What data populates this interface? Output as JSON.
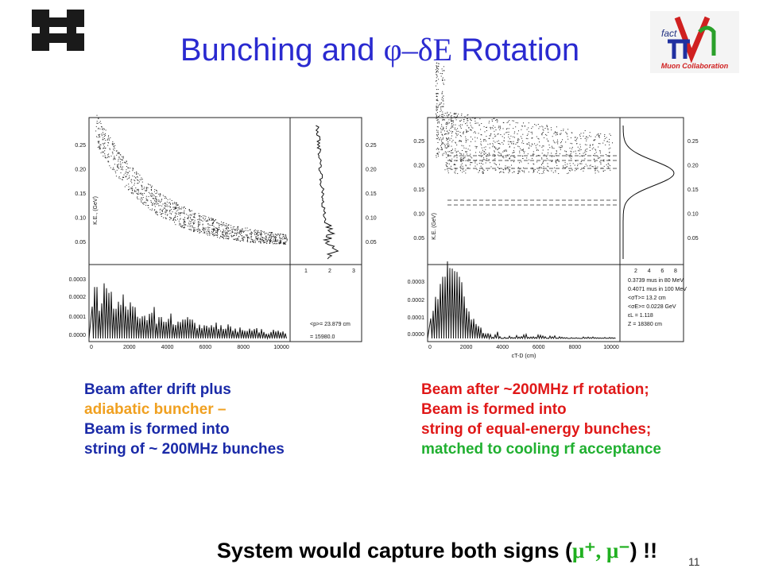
{
  "header": {
    "title": [
      "Bunching and ",
      "φ–δE",
      " Rotation"
    ],
    "logo": [
      "fact",
      "Muon Collaboration"
    ]
  },
  "figures": [
    {
      "ylabel": "K.E., (GeV)",
      "yticks": [
        "0.25",
        "0.20",
        "0.15",
        "0.10",
        "0.05"
      ],
      "hist_yticks": [
        "0.0003",
        "0.0002",
        "0.0001",
        "0.0000"
      ],
      "xticks": [
        "0",
        "2000",
        "4000",
        "6000",
        "8000",
        "10000"
      ],
      "side_xticks": [
        "1",
        "2",
        "3"
      ],
      "side_yticks": [
        "0.25",
        "0.20",
        "0.15",
        "0.10",
        "0.05"
      ],
      "notes": [
        "<p>= 23.879 cm",
        "= 15980.0"
      ]
    },
    {
      "ylabel": "K.E. (GeV)",
      "yticks": [
        "0.25",
        "0.20",
        "0.15",
        "0.10",
        "0.05"
      ],
      "hist_yticks": [
        "0.0003",
        "0.0002",
        "0.0001",
        "0.0000"
      ],
      "xticks": [
        "0",
        "2000",
        "4000",
        "6000",
        "8000",
        "10000"
      ],
      "xlabel": "cT-D (cm)",
      "side_xticks": [
        "2",
        "4",
        "6",
        "8"
      ],
      "side_yticks": [
        "0.25",
        "0.20",
        "0.15",
        "0.10",
        "0.05"
      ],
      "notes": [
        "0.3739 mus in 80 MeV",
        "0.4071 mus in 100 MeV",
        "<σT>= 13.2 cm",
        "<σE>= 0.0228 GeV",
        "εL = 1.118",
        "Z = 18380 cm"
      ]
    }
  ],
  "captions": {
    "left": [
      "Beam after drift plus",
      "adiabatic buncher –",
      "Beam is formed into",
      "string of ~ 200MHz bunches"
    ],
    "right": [
      "Beam after ~200MHz rf rotation;",
      "Beam is formed into",
      "string of equal-energy bunches;",
      "matched to cooling rf acceptance"
    ]
  },
  "footer": {
    "text": [
      "System would capture both signs (",
      "μ⁺, μ⁻",
      ") !!"
    ],
    "page": "11"
  }
}
